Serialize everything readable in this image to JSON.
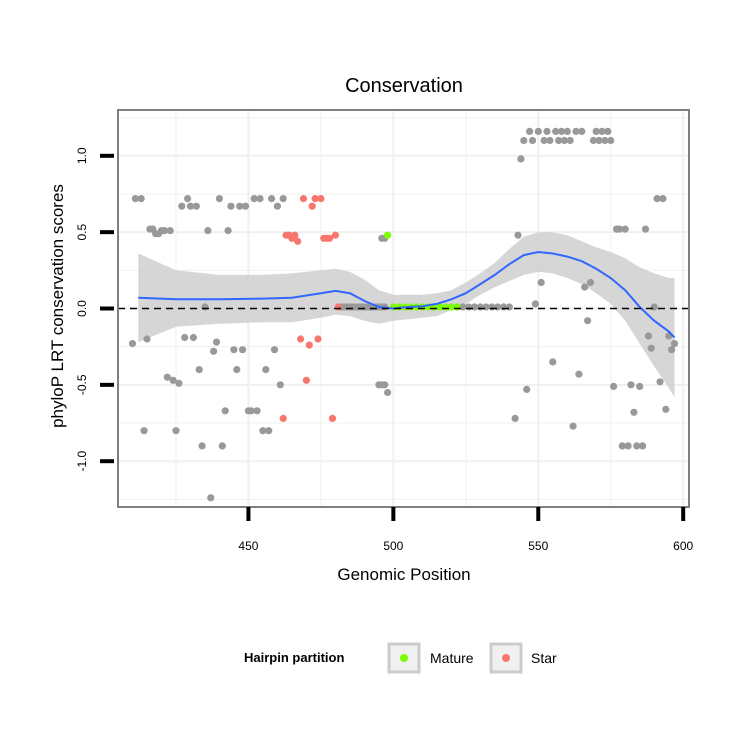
{
  "chart_data": {
    "type": "scatter",
    "title": "Conservation",
    "xlabel": "Genomic Position",
    "ylabel": "phyloP LRT conservation scores",
    "xlim": [
      405,
      602
    ],
    "ylim": [
      -1.3,
      1.3
    ],
    "xticks": [
      450,
      500,
      550,
      600
    ],
    "yticks": [
      -1.0,
      -0.5,
      0.0,
      0.5,
      1.0
    ],
    "xtick_labels": [
      "450",
      "500",
      "550",
      "600"
    ],
    "ytick_labels": [
      "-1.0",
      "-0.5",
      "0.0",
      "0.5",
      "1.0"
    ],
    "reference_line": {
      "y": 0,
      "style": "dashed"
    },
    "colors": {
      "other": "#999999",
      "Mature": "#7cfc00",
      "Star": "#f8766d",
      "smooth": "#3366ff",
      "ribbon": "#cccccc",
      "grid": "#f0f0f0"
    },
    "legend": {
      "title": "Hairpin partition",
      "entries": [
        {
          "label": "Mature",
          "color": "#7cfc00"
        },
        {
          "label": "Star",
          "color": "#f8766d"
        }
      ],
      "position": "bottom"
    },
    "smooth": {
      "x": [
        412,
        425,
        440,
        455,
        465,
        475,
        480,
        485,
        490,
        495,
        500,
        505,
        510,
        515,
        520,
        525,
        530,
        535,
        540,
        545,
        550,
        555,
        560,
        565,
        570,
        575,
        580,
        585,
        590,
        595,
        597
      ],
      "y": [
        0.07,
        0.06,
        0.06,
        0.065,
        0.07,
        0.1,
        0.115,
        0.1,
        0.05,
        0.01,
        0.0,
        0.01,
        0.015,
        0.03,
        0.06,
        0.1,
        0.16,
        0.22,
        0.29,
        0.35,
        0.37,
        0.36,
        0.34,
        0.31,
        0.26,
        0.2,
        0.12,
        0.01,
        -0.08,
        -0.15,
        -0.19
      ],
      "upper": [
        0.36,
        0.25,
        0.22,
        0.22,
        0.23,
        0.25,
        0.26,
        0.24,
        0.19,
        0.12,
        0.09,
        0.09,
        0.09,
        0.1,
        0.12,
        0.17,
        0.23,
        0.3,
        0.39,
        0.47,
        0.5,
        0.5,
        0.48,
        0.44,
        0.4,
        0.37,
        0.33,
        0.27,
        0.23,
        0.2,
        0.2
      ],
      "lower": [
        -0.22,
        -0.12,
        -0.1,
        -0.09,
        -0.09,
        -0.06,
        -0.04,
        -0.05,
        -0.08,
        -0.1,
        -0.08,
        -0.07,
        -0.06,
        -0.05,
        -0.01,
        0.03,
        0.09,
        0.14,
        0.18,
        0.22,
        0.24,
        0.23,
        0.2,
        0.16,
        0.1,
        0.03,
        -0.08,
        -0.23,
        -0.38,
        -0.52,
        -0.58
      ]
    },
    "series": [
      {
        "name": "Other",
        "color": "#999999",
        "points": [
          [
            410,
            -0.23
          ],
          [
            411,
            0.72
          ],
          [
            413,
            0.72
          ],
          [
            414,
            -0.8
          ],
          [
            415,
            -0.2
          ],
          [
            416,
            0.52
          ],
          [
            417,
            0.52
          ],
          [
            418,
            0.49
          ],
          [
            419,
            0.49
          ],
          [
            420,
            0.51
          ],
          [
            421,
            0.51
          ],
          [
            422,
            -0.45
          ],
          [
            423,
            0.51
          ],
          [
            424,
            -0.47
          ],
          [
            425,
            -0.8
          ],
          [
            426,
            -0.49
          ],
          [
            427,
            0.67
          ],
          [
            428,
            -0.19
          ],
          [
            429,
            0.72
          ],
          [
            430,
            0.67
          ],
          [
            431,
            -0.19
          ],
          [
            432,
            0.67
          ],
          [
            433,
            -0.4
          ],
          [
            434,
            -0.9
          ],
          [
            435,
            0.01
          ],
          [
            436,
            0.51
          ],
          [
            437,
            -1.24
          ],
          [
            438,
            -0.28
          ],
          [
            439,
            -0.22
          ],
          [
            440,
            0.72
          ],
          [
            441,
            -0.9
          ],
          [
            442,
            -0.67
          ],
          [
            443,
            0.51
          ],
          [
            444,
            0.67
          ],
          [
            445,
            -0.27
          ],
          [
            446,
            -0.4
          ],
          [
            447,
            0.67
          ],
          [
            448,
            -0.27
          ],
          [
            449,
            0.67
          ],
          [
            450,
            -0.67
          ],
          [
            451,
            -0.67
          ],
          [
            452,
            0.72
          ],
          [
            453,
            -0.67
          ],
          [
            454,
            0.72
          ],
          [
            455,
            -0.8
          ],
          [
            456,
            -0.4
          ],
          [
            457,
            -0.8
          ],
          [
            458,
            0.72
          ],
          [
            459,
            -0.27
          ],
          [
            460,
            0.67
          ],
          [
            461,
            -0.5
          ],
          [
            462,
            0.72
          ],
          [
            482,
            0.01
          ],
          [
            483,
            0.01
          ],
          [
            484,
            0.01
          ],
          [
            485,
            0.01
          ],
          [
            486,
            0.01
          ],
          [
            487,
            0.01
          ],
          [
            488,
            0.01
          ],
          [
            489,
            0.01
          ],
          [
            490,
            0.01
          ],
          [
            491,
            0.01
          ],
          [
            492,
            0.01
          ],
          [
            493,
            0.01
          ],
          [
            494,
            0.01
          ],
          [
            495,
            0.01
          ],
          [
            496,
            0.01
          ],
          [
            497,
            0.01
          ],
          [
            495,
            -0.5
          ],
          [
            496,
            -0.5
          ],
          [
            497,
            -0.5
          ],
          [
            498,
            -0.55
          ],
          [
            496,
            0.46
          ],
          [
            497,
            0.46
          ],
          [
            520,
            0.01
          ],
          [
            522,
            0.01
          ],
          [
            524,
            0.01
          ],
          [
            526,
            0.01
          ],
          [
            528,
            0.01
          ],
          [
            530,
            0.01
          ],
          [
            532,
            0.01
          ],
          [
            534,
            0.01
          ],
          [
            536,
            0.01
          ],
          [
            538,
            0.01
          ],
          [
            540,
            0.01
          ],
          [
            542,
            -0.72
          ],
          [
            543,
            0.48
          ],
          [
            544,
            0.98
          ],
          [
            545,
            1.1
          ],
          [
            546,
            -0.53
          ],
          [
            547,
            1.16
          ],
          [
            548,
            1.1
          ],
          [
            549,
            0.03
          ],
          [
            550,
            1.16
          ],
          [
            551,
            0.17
          ],
          [
            552,
            1.1
          ],
          [
            553,
            1.16
          ],
          [
            554,
            1.1
          ],
          [
            555,
            -0.35
          ],
          [
            556,
            1.16
          ],
          [
            557,
            1.1
          ],
          [
            558,
            1.16
          ],
          [
            559,
            1.1
          ],
          [
            560,
            1.16
          ],
          [
            561,
            1.1
          ],
          [
            562,
            -0.77
          ],
          [
            563,
            1.16
          ],
          [
            564,
            -0.43
          ],
          [
            565,
            1.16
          ],
          [
            566,
            0.14
          ],
          [
            567,
            -0.08
          ],
          [
            568,
            0.17
          ],
          [
            569,
            1.1
          ],
          [
            570,
            1.16
          ],
          [
            571,
            1.1
          ],
          [
            572,
            1.16
          ],
          [
            573,
            1.1
          ],
          [
            574,
            1.16
          ],
          [
            575,
            1.1
          ],
          [
            576,
            -0.51
          ],
          [
            577,
            0.52
          ],
          [
            578,
            0.52
          ],
          [
            579,
            -0.9
          ],
          [
            580,
            0.52
          ],
          [
            581,
            -0.9
          ],
          [
            582,
            -0.5
          ],
          [
            583,
            -0.68
          ],
          [
            584,
            -0.9
          ],
          [
            585,
            -0.51
          ],
          [
            586,
            -0.9
          ],
          [
            587,
            0.52
          ],
          [
            588,
            -0.18
          ],
          [
            589,
            -0.26
          ],
          [
            590,
            0.01
          ],
          [
            591,
            0.72
          ],
          [
            592,
            -0.48
          ],
          [
            593,
            0.72
          ],
          [
            594,
            -0.66
          ],
          [
            595,
            -0.18
          ],
          [
            596,
            -0.27
          ],
          [
            597,
            -0.23
          ]
        ]
      },
      {
        "name": "Mature",
        "color": "#7cfc00",
        "points": [
          [
            498,
            0.48
          ],
          [
            500,
            0.01
          ],
          [
            502,
            0.01
          ],
          [
            504,
            0.01
          ],
          [
            506,
            0.01
          ],
          [
            508,
            0.01
          ],
          [
            510,
            0.01
          ],
          [
            512,
            0.01
          ],
          [
            514,
            0.01
          ],
          [
            516,
            0.01
          ],
          [
            518,
            0.01
          ],
          [
            520,
            0.01
          ],
          [
            522,
            0.01
          ]
        ]
      },
      {
        "name": "Star",
        "color": "#f8766d",
        "points": [
          [
            462,
            -0.72
          ],
          [
            463,
            0.48
          ],
          [
            464,
            0.48
          ],
          [
            465,
            0.46
          ],
          [
            466,
            0.48
          ],
          [
            467,
            0.44
          ],
          [
            468,
            -0.2
          ],
          [
            469,
            0.72
          ],
          [
            470,
            -0.47
          ],
          [
            471,
            -0.24
          ],
          [
            472,
            0.67
          ],
          [
            473,
            0.72
          ],
          [
            474,
            -0.2
          ],
          [
            475,
            0.72
          ],
          [
            476,
            0.46
          ],
          [
            477,
            0.46
          ],
          [
            478,
            0.46
          ],
          [
            479,
            -0.72
          ],
          [
            480,
            0.48
          ],
          [
            481,
            0.01
          ]
        ]
      }
    ]
  }
}
